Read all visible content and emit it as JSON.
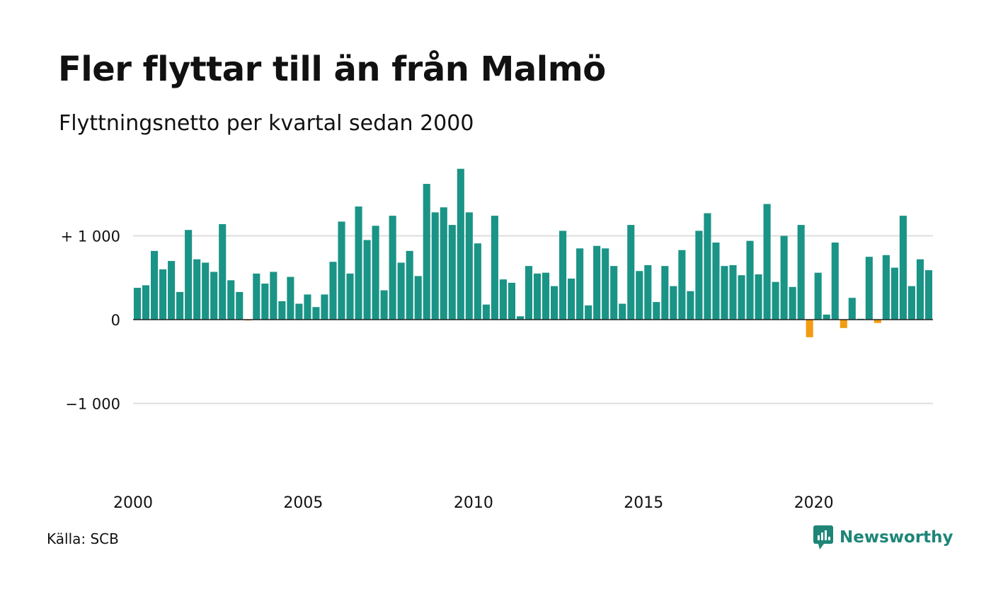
{
  "header": {
    "title": "Fler flyttar till än från Malmö",
    "subtitle": "Flyttningsnetto per kvartal sedan 2000"
  },
  "footer": {
    "source": "Källa: SCB",
    "brand": "Newsworthy"
  },
  "colors": {
    "positive": "#1a9486",
    "negative": "#f39c12",
    "grid": "#dddddd",
    "baseline": "#222222",
    "brand": "#1e8577"
  },
  "chart_data": {
    "type": "bar",
    "title": "Fler flyttar till än från Malmö",
    "subtitle": "Flyttningsnetto per kvartal sedan 2000",
    "x_start": "2000-Q1",
    "x_ticks": [
      "2000",
      "2005",
      "2010",
      "2015",
      "2020"
    ],
    "y_ticks": [
      {
        "value": 1000,
        "label": "+ 1 000"
      },
      {
        "value": 0,
        "label": "0"
      },
      {
        "value": -1000,
        "label": "−1 000"
      }
    ],
    "ylim": [
      -2000,
      1900
    ],
    "grid": true,
    "series": [
      {
        "values": [
          380,
          410,
          820,
          600,
          700,
          330,
          1070,
          720,
          680,
          570,
          1140,
          470,
          330,
          -10,
          550,
          430,
          570,
          220,
          510,
          190,
          300,
          150,
          300,
          690,
          1170,
          550,
          1350,
          950,
          1120,
          350,
          1240,
          680,
          820,
          520,
          1620,
          1280,
          1340,
          1130,
          1800,
          1280,
          910,
          180,
          1240,
          480,
          440,
          40,
          640,
          550,
          560,
          400,
          1060,
          490,
          850,
          170,
          880,
          850,
          640,
          190,
          1130,
          580,
          650,
          210,
          640,
          400,
          830,
          340,
          1060,
          1270,
          920,
          640,
          650,
          530,
          940,
          540,
          1380,
          450,
          1000,
          390,
          1130,
          -210,
          560,
          60,
          920,
          -100,
          260,
          10,
          750,
          -40,
          770,
          620,
          1240,
          400,
          720,
          590
        ]
      }
    ]
  }
}
